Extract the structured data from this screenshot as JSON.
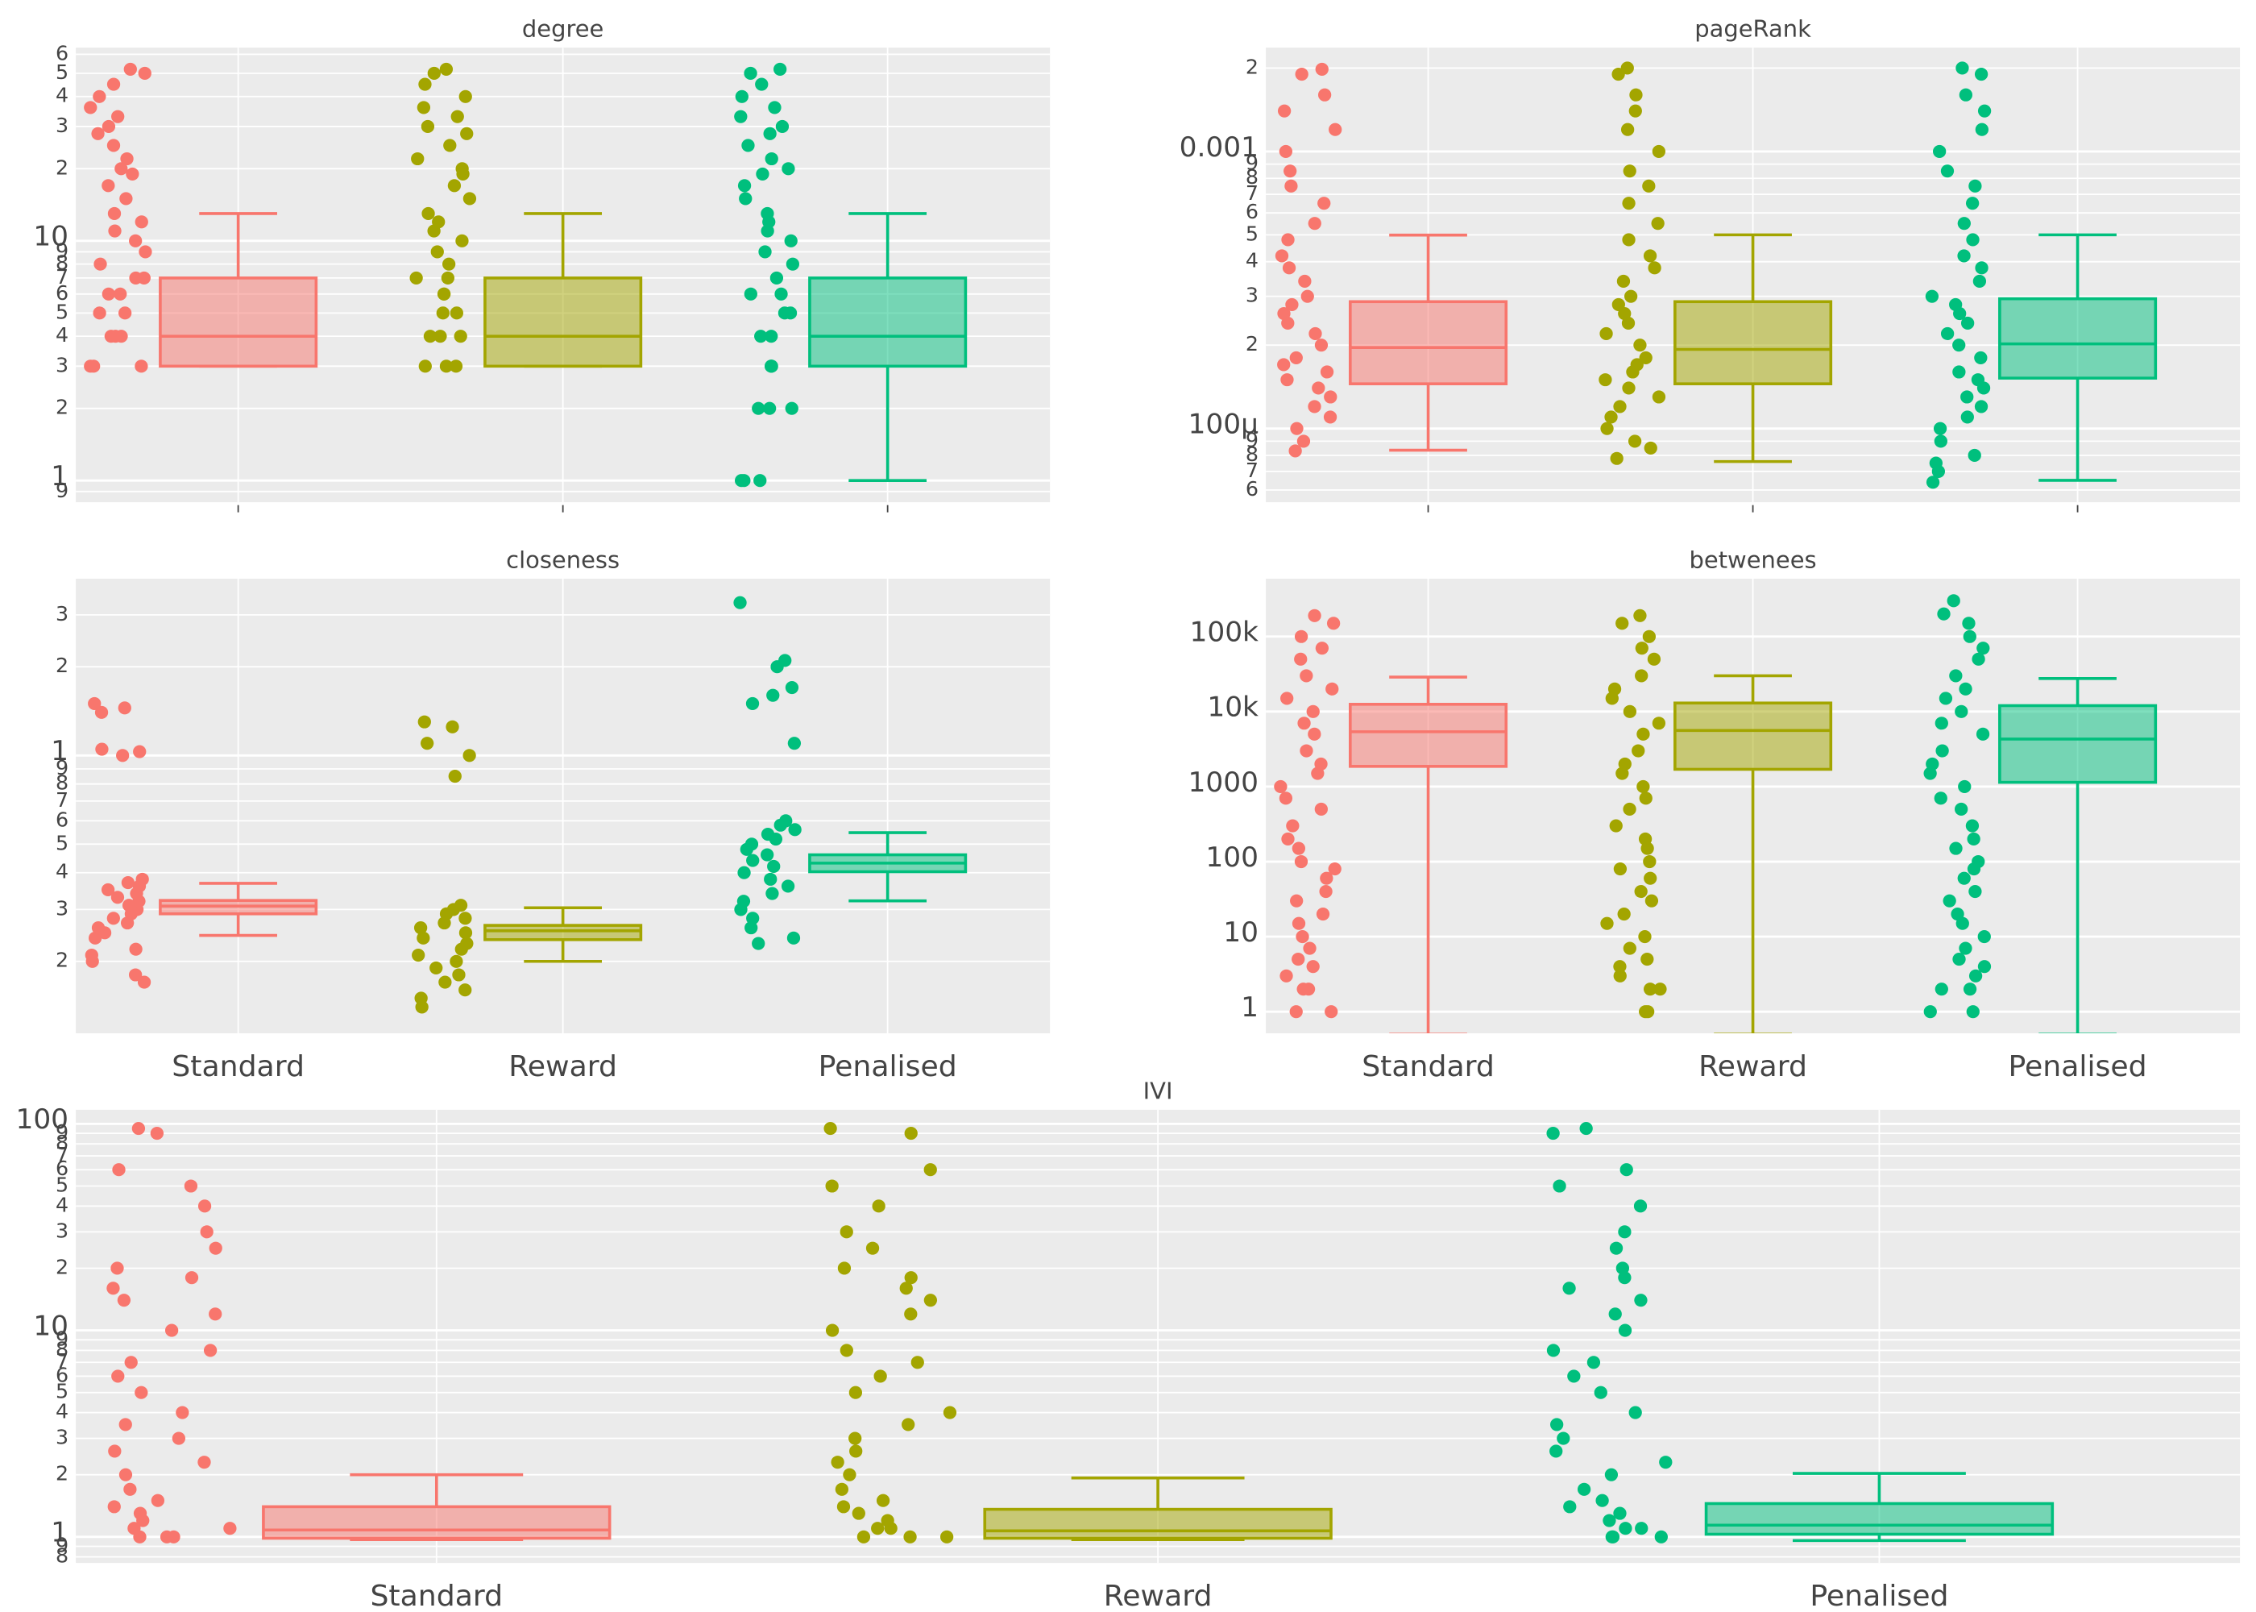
{
  "chart_data": [
    {
      "type": "box",
      "title": "degree",
      "yscale": "log",
      "grid": true,
      "categories": [
        null,
        null,
        null
      ],
      "colors": [
        "#f8766d",
        "#a3a500",
        "#00bf7d"
      ],
      "ylim": [
        0.812,
        64
      ],
      "yticks": [
        {
          "value": 0.9,
          "label": "9"
        },
        1,
        2,
        3,
        4,
        5,
        6,
        7,
        8,
        9,
        10,
        {
          "value": 20,
          "label": "2"
        },
        {
          "value": 30,
          "label": "3"
        },
        {
          "value": 40,
          "label": "4"
        },
        {
          "value": 50,
          "label": "5"
        },
        {
          "value": 60,
          "label": "6"
        }
      ],
      "boxes": [
        {
          "whisker_low": 3,
          "q1": 3,
          "median": 4,
          "q3": 7,
          "whisker_high": 13,
          "points": [
            3,
            3,
            3,
            4,
            4,
            4,
            5,
            5,
            6,
            6,
            7,
            7,
            8,
            9,
            10,
            11,
            12,
            13,
            15,
            17,
            19,
            20,
            22,
            25,
            28,
            30,
            33,
            36,
            40,
            45,
            50,
            52
          ]
        },
        {
          "whisker_low": 3,
          "q1": 3,
          "median": 4,
          "q3": 7,
          "whisker_high": 13,
          "points": [
            3,
            3,
            3,
            4,
            4,
            4,
            5,
            5,
            6,
            6,
            7,
            7,
            8,
            9,
            10,
            11,
            12,
            13,
            15,
            17,
            19,
            20,
            22,
            25,
            28,
            30,
            33,
            36,
            40,
            45,
            50,
            52
          ]
        },
        {
          "whisker_low": 1,
          "q1": 3,
          "median": 4,
          "q3": 7,
          "whisker_high": 13,
          "points": [
            1,
            1,
            1,
            2,
            2,
            2,
            3,
            3,
            3,
            4,
            4,
            5,
            5,
            6,
            6,
            7,
            8,
            9,
            10,
            11,
            12,
            13,
            15,
            17,
            19,
            20,
            22,
            25,
            28,
            30,
            33,
            36,
            40,
            45,
            50,
            52
          ]
        }
      ]
    },
    {
      "type": "box",
      "title": "pageRank",
      "yscale": "log",
      "grid": true,
      "categories": [
        null,
        null,
        null
      ],
      "colors": [
        "#f8766d",
        "#a3a500",
        "#00bf7d"
      ],
      "ylim": [
        5.42e-05,
        0.00237
      ],
      "yticks": [
        {
          "value": 6e-05,
          "label": "6"
        },
        {
          "value": 7e-05,
          "label": "7"
        },
        {
          "value": 8e-05,
          "label": "8"
        },
        {
          "value": 9e-05,
          "label": "9"
        },
        {
          "value": 0.0001,
          "label": "100µ"
        },
        {
          "value": 0.0002,
          "label": "2"
        },
        {
          "value": 0.0003,
          "label": "3"
        },
        {
          "value": 0.0004,
          "label": "4"
        },
        {
          "value": 0.0005,
          "label": "5"
        },
        {
          "value": 0.0006,
          "label": "6"
        },
        {
          "value": 0.0007,
          "label": "7"
        },
        {
          "value": 0.0008,
          "label": "8"
        },
        {
          "value": 0.0009,
          "label": "9"
        },
        0.001,
        {
          "value": 0.002,
          "label": "2"
        }
      ],
      "boxes": [
        {
          "whisker_low": 8.35e-05,
          "q1": 0.000145,
          "median": 0.000196,
          "q3": 0.000287,
          "whisker_high": 0.000499,
          "points": [
            8.3e-05,
            9e-05,
            0.0001,
            0.00011,
            0.00012,
            0.00013,
            0.00014,
            0.00015,
            0.00016,
            0.00017,
            0.00018,
            0.0002,
            0.00022,
            0.00024,
            0.00026,
            0.00028,
            0.0003,
            0.00034,
            0.00038,
            0.00042,
            0.00048,
            0.00055,
            0.00065,
            0.00075,
            0.00085,
            0.001,
            0.0012,
            0.0014,
            0.0016,
            0.0019,
            0.00198
          ]
        },
        {
          "whisker_low": 7.6e-05,
          "q1": 0.000145,
          "median": 0.000193,
          "q3": 0.000287,
          "whisker_high": 0.0005,
          "points": [
            7.8e-05,
            8.5e-05,
            9e-05,
            0.0001,
            0.00011,
            0.00012,
            0.00013,
            0.00014,
            0.00015,
            0.00016,
            0.00017,
            0.00018,
            0.0002,
            0.00022,
            0.00024,
            0.00026,
            0.00028,
            0.0003,
            0.00034,
            0.00038,
            0.00042,
            0.00048,
            0.00055,
            0.00065,
            0.00075,
            0.00085,
            0.001,
            0.0012,
            0.0014,
            0.0016,
            0.0019,
            0.002
          ]
        },
        {
          "whisker_low": 6.5e-05,
          "q1": 0.000152,
          "median": 0.000202,
          "q3": 0.000294,
          "whisker_high": 0.0005,
          "points": [
            6.4e-05,
            7e-05,
            7.5e-05,
            8e-05,
            9e-05,
            0.0001,
            0.00011,
            0.00012,
            0.00013,
            0.00014,
            0.00015,
            0.00016,
            0.00018,
            0.0002,
            0.00022,
            0.00024,
            0.00026,
            0.00028,
            0.0003,
            0.00034,
            0.00038,
            0.00042,
            0.00048,
            0.00055,
            0.00065,
            0.00075,
            0.00085,
            0.001,
            0.0012,
            0.0014,
            0.0016,
            0.0019,
            0.002
          ]
        }
      ]
    },
    {
      "type": "box",
      "title": "closeness",
      "yscale": "log",
      "grid": true,
      "categories": [
        "Standard",
        "Reward",
        "Penalised"
      ],
      "colors": [
        "#f8766d",
        "#a3a500",
        "#00bf7d"
      ],
      "ylim": [
        0.114,
        3.98
      ],
      "yticks": [
        {
          "value": 0.2,
          "label": "2"
        },
        {
          "value": 0.3,
          "label": "3"
        },
        {
          "value": 0.4,
          "label": "4"
        },
        {
          "value": 0.5,
          "label": "5"
        },
        {
          "value": 0.6,
          "label": "6"
        },
        {
          "value": 0.7,
          "label": "7"
        },
        {
          "value": 0.8,
          "label": "8"
        },
        {
          "value": 0.9,
          "label": "9"
        },
        1,
        2,
        3
      ],
      "boxes": [
        {
          "whisker_low": 0.245,
          "q1": 0.29,
          "median": 0.308,
          "q3": 0.322,
          "whisker_high": 0.368,
          "points": [
            0.17,
            0.18,
            0.2,
            0.21,
            0.22,
            0.24,
            0.25,
            0.26,
            0.27,
            0.28,
            0.29,
            0.3,
            0.31,
            0.32,
            0.33,
            0.34,
            0.35,
            0.36,
            0.37,
            0.38,
            1.0,
            1.03,
            1.05,
            1.4,
            1.45,
            1.5
          ]
        },
        {
          "whisker_low": 0.2,
          "q1": 0.237,
          "median": 0.254,
          "q3": 0.265,
          "whisker_high": 0.304,
          "points": [
            0.14,
            0.15,
            0.16,
            0.17,
            0.18,
            0.19,
            0.2,
            0.21,
            0.22,
            0.23,
            0.24,
            0.25,
            0.26,
            0.27,
            0.28,
            0.29,
            0.3,
            0.31,
            0.85,
            1.0,
            1.1,
            1.25,
            1.3
          ]
        },
        {
          "whisker_low": 0.321,
          "q1": 0.403,
          "median": 0.431,
          "q3": 0.46,
          "whisker_high": 0.547,
          "points": [
            0.23,
            0.24,
            0.26,
            0.28,
            0.3,
            0.32,
            0.34,
            0.36,
            0.38,
            0.4,
            0.42,
            0.44,
            0.46,
            0.48,
            0.5,
            0.52,
            0.54,
            0.56,
            0.58,
            0.6,
            1.1,
            1.5,
            1.6,
            1.7,
            2.0,
            2.1,
            3.3
          ]
        }
      ]
    },
    {
      "type": "box",
      "title": "betwenees",
      "yscale": "log",
      "grid": true,
      "categories": [
        "Standard",
        "Reward",
        "Penalised"
      ],
      "colors": [
        "#f8766d",
        "#a3a500",
        "#00bf7d"
      ],
      "ylim": [
        0.515,
        590000
      ],
      "yticks": [
        1,
        10,
        100,
        1000,
        {
          "value": 10000,
          "label": "10k"
        },
        {
          "value": 100000,
          "label": "100k"
        }
      ],
      "boxes": [
        {
          "whisker_low": 0.5,
          "q1": 1860,
          "median": 5380,
          "q3": 12500,
          "whisker_high": 28800,
          "points": [
            1,
            1,
            2,
            2,
            3,
            4,
            5,
            7,
            10,
            15,
            20,
            30,
            40,
            60,
            80,
            100,
            150,
            200,
            300,
            500,
            700,
            1000,
            1500,
            2000,
            3000,
            5000,
            7000,
            10000,
            15000,
            20000,
            30000,
            50000,
            70000,
            100000,
            150000,
            190000
          ]
        },
        {
          "whisker_low": 0.5,
          "q1": 1700,
          "median": 5600,
          "q3": 13000,
          "whisker_high": 30000,
          "points": [
            1,
            1,
            2,
            2,
            3,
            4,
            5,
            7,
            10,
            15,
            20,
            30,
            40,
            60,
            80,
            100,
            150,
            200,
            300,
            500,
            700,
            1000,
            1500,
            2000,
            3000,
            5000,
            7000,
            10000,
            15000,
            20000,
            30000,
            50000,
            70000,
            100000,
            150000,
            190000
          ]
        },
        {
          "whisker_low": 0.5,
          "q1": 1140,
          "median": 4300,
          "q3": 12000,
          "whisker_high": 27600,
          "points": [
            1,
            1,
            2,
            2,
            3,
            4,
            5,
            7,
            10,
            15,
            20,
            30,
            40,
            60,
            80,
            100,
            150,
            200,
            300,
            500,
            700,
            1000,
            1500,
            2000,
            3000,
            5000,
            7000,
            10000,
            15000,
            20000,
            30000,
            50000,
            70000,
            100000,
            150000,
            200000,
            300000
          ]
        }
      ]
    },
    {
      "type": "box",
      "title": "IVI",
      "yscale": "log",
      "grid": true,
      "categories": [
        "Standard",
        "Reward",
        "Penalised"
      ],
      "colors": [
        "#f8766d",
        "#a3a500",
        "#00bf7d"
      ],
      "ylim": [
        0.748,
        117
      ],
      "yticks": [
        {
          "value": 0.8,
          "label": "8"
        },
        {
          "value": 0.9,
          "label": "9"
        },
        1,
        2,
        3,
        4,
        5,
        6,
        7,
        8,
        9,
        10,
        {
          "value": 20,
          "label": "2"
        },
        {
          "value": 30,
          "label": "3"
        },
        {
          "value": 40,
          "label": "4"
        },
        {
          "value": 50,
          "label": "5"
        },
        {
          "value": 60,
          "label": "6"
        },
        {
          "value": 70,
          "label": "7"
        },
        {
          "value": 80,
          "label": "8"
        },
        {
          "value": 90,
          "label": "9"
        },
        100
      ],
      "boxes": [
        {
          "whisker_low": 0.97,
          "q1": 0.985,
          "median": 1.08,
          "q3": 1.4,
          "whisker_high": 2.0,
          "points": [
            1,
            1,
            1,
            1.1,
            1.1,
            1.2,
            1.3,
            1.4,
            1.5,
            1.7,
            2,
            2.3,
            2.6,
            3,
            3.5,
            4,
            5,
            6,
            7,
            8,
            10,
            12,
            14,
            16,
            18,
            20,
            25,
            30,
            40,
            50,
            60,
            90,
            95
          ]
        },
        {
          "whisker_low": 0.97,
          "q1": 0.985,
          "median": 1.07,
          "q3": 1.36,
          "whisker_high": 1.93,
          "points": [
            1,
            1,
            1,
            1.1,
            1.1,
            1.2,
            1.3,
            1.4,
            1.5,
            1.7,
            2,
            2.3,
            2.6,
            3,
            3.5,
            4,
            5,
            6,
            7,
            8,
            10,
            12,
            14,
            16,
            18,
            20,
            25,
            30,
            40,
            50,
            60,
            90,
            95
          ]
        },
        {
          "whisker_low": 0.96,
          "q1": 1.03,
          "median": 1.14,
          "q3": 1.45,
          "whisker_high": 2.03,
          "points": [
            1,
            1,
            1,
            1.1,
            1.1,
            1.2,
            1.3,
            1.4,
            1.5,
            1.7,
            2,
            2.3,
            2.6,
            3,
            3.5,
            4,
            5,
            6,
            7,
            8,
            10,
            12,
            14,
            16,
            18,
            20,
            25,
            30,
            40,
            50,
            60,
            90,
            95
          ]
        }
      ]
    }
  ]
}
